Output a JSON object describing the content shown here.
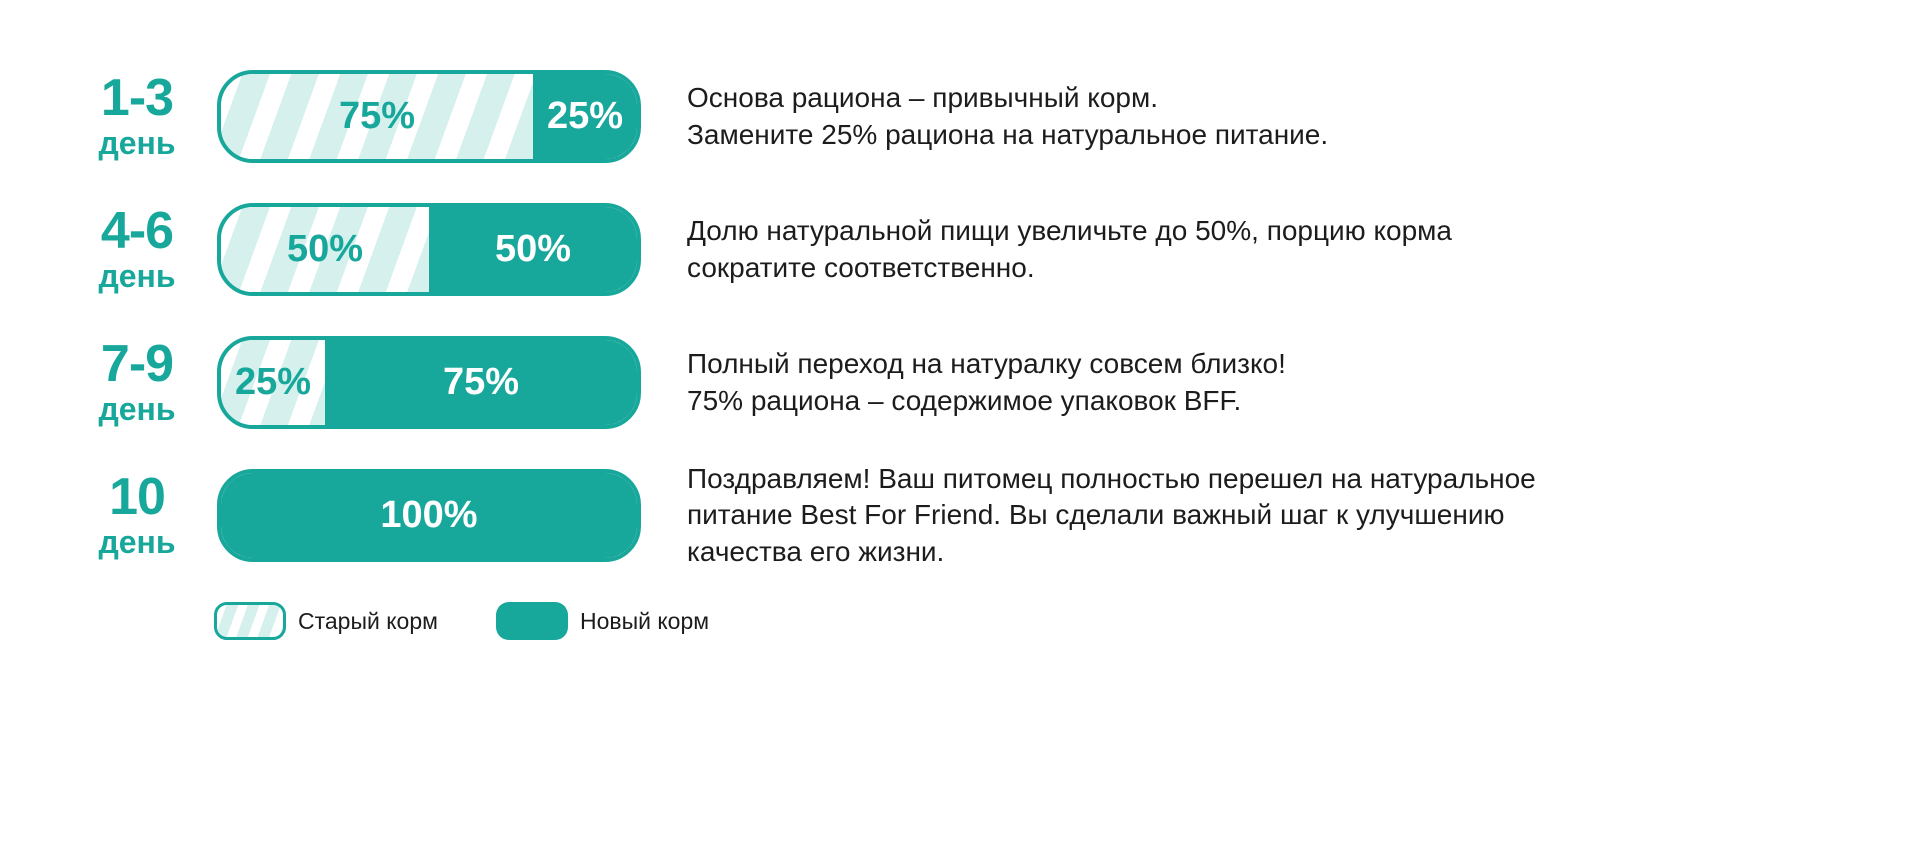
{
  "colors": {
    "teal": "#18a79b",
    "stripe_light": "#d5f0ed",
    "text_dark": "#1c1c1c",
    "background": "#ffffff"
  },
  "rows": [
    {
      "day_range": "1-3",
      "day_word": "день",
      "old_value": 75,
      "new_value": 25,
      "old_label": "75%",
      "new_label": "25%",
      "description": "Основа рациона – привычный корм.\nЗамените 25% рациона на натуральное питание."
    },
    {
      "day_range": "4-6",
      "day_word": "день",
      "old_value": 50,
      "new_value": 50,
      "old_label": "50%",
      "new_label": "50%",
      "description": "Долю натуральной пищи увеличьте до 50%, порцию корма\nсократите соответственно."
    },
    {
      "day_range": "7-9",
      "day_word": "день",
      "old_value": 25,
      "new_value": 75,
      "old_label": "25%",
      "new_label": "75%",
      "description": "Полный переход на натуралку совсем близко!\n75% рациона – содержимое упаковок BFF."
    },
    {
      "day_range": "10",
      "day_word": "день",
      "old_value": 0,
      "new_value": 100,
      "old_label": "",
      "new_label": "100%",
      "description": "Поздравляем! Ваш питомец полностью перешел на натуральное\nпитание Best For Friend. Вы сделали важный шаг к улучшению\nкачества его жизни."
    }
  ],
  "legend": {
    "old_label": "Старый корм",
    "new_label": "Новый корм"
  },
  "chart_data": {
    "type": "bar",
    "subtype": "horizontal-stacked",
    "categories": [
      "1-3 день",
      "4-6 день",
      "7-9 день",
      "10 день"
    ],
    "series": [
      {
        "name": "Старый корм",
        "values": [
          75,
          50,
          25,
          0
        ]
      },
      {
        "name": "Новый корм",
        "values": [
          25,
          50,
          75,
          100
        ]
      }
    ],
    "value_unit": "%",
    "xlim": [
      0,
      100
    ],
    "legend_position": "bottom",
    "grid": false,
    "annotations": [
      "Основа рациона – привычный корм. Замените 25% рациона на натуральное питание.",
      "Долю натуральной пищи увеличьте до 50%, порцию корма сократите соответственно.",
      "Полный переход на натуралку совсем близко! 75% рациона – содержимое упаковок BFF.",
      "Поздравляем! Ваш питомец полностью перешел на натуральное питание Best For Friend. Вы сделали важный шаг к улучшению качества его жизни."
    ]
  }
}
